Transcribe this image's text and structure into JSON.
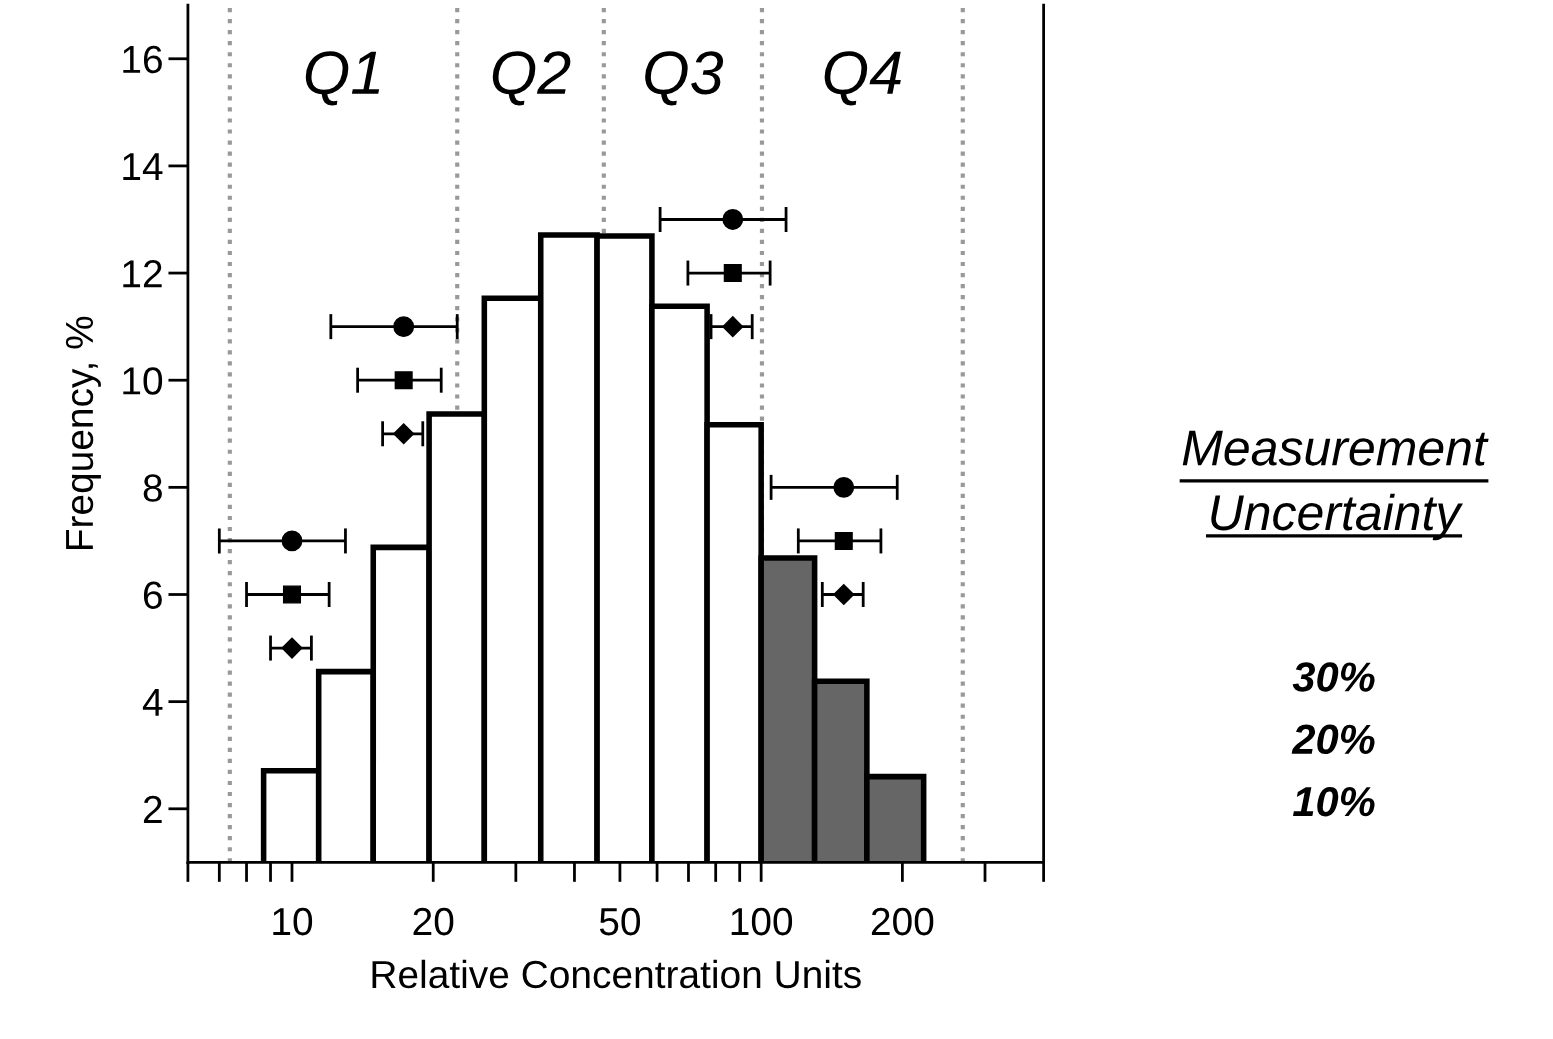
{
  "chart_data": {
    "type": "histogram",
    "xlabel": "Relative Concentration Units",
    "ylabel": "Frequency, %",
    "log": "x",
    "xlim": [
      6,
      400
    ],
    "ylim": [
      1,
      17
    ],
    "xticks": [
      10,
      20,
      50,
      100,
      200
    ],
    "yticks": [
      2,
      4,
      6,
      8,
      10,
      12,
      14,
      16
    ],
    "grid": false,
    "legend": false,
    "series": [
      {
        "bins": [
          8.7,
          11.4,
          14.9,
          19.6,
          25.7,
          33.9,
          44.7,
          58.5,
          76.7,
          100,
          130,
          168,
          222
        ],
        "values": [
          2.71,
          4.56,
          6.88,
          9.37,
          11.53,
          12.71,
          12.69,
          11.38,
          9.17,
          6.68,
          4.38,
          2.6
        ],
        "colors": [
          "#ffffff",
          "#ffffff",
          "#ffffff",
          "#ffffff",
          "#ffffff",
          "#ffffff",
          "#ffffff",
          "#ffffff",
          "#ffffff",
          "#666666",
          "#666666",
          "#666666"
        ]
      },
      {
        "type": "scatter",
        "marker": "circle",
        "color": "#000000",
        "x": [
          10,
          17.3,
          87,
          150
        ],
        "values": [
          7,
          11,
          13,
          8
        ],
        "xerrors": [
          [
            7,
            13
          ],
          [
            12.1,
            22.5
          ],
          [
            60.9,
            113
          ],
          [
            105,
            195
          ]
        ]
      },
      {
        "type": "scatter",
        "marker": "square",
        "color": "#000000",
        "x": [
          10,
          17.3,
          87,
          150
        ],
        "values": [
          6,
          10,
          12,
          7
        ],
        "xerrors": [
          [
            8,
            12
          ],
          [
            13.8,
            20.8
          ],
          [
            69.8,
            104.5
          ],
          [
            120,
            180
          ]
        ]
      },
      {
        "type": "scatter",
        "marker": "diamond",
        "color": "#000000",
        "x": [
          10,
          17.3,
          87,
          150
        ],
        "values": [
          5,
          9,
          11,
          6
        ],
        "xerrors": [
          [
            9,
            11
          ],
          [
            15.6,
            19
          ],
          [
            78.2,
            95.7
          ],
          [
            135,
            165
          ]
        ]
      }
    ],
    "ref_lines": [
      {
        "axis": "x",
        "value": 7.37,
        "color": "#999999",
        "line_style": "dotted"
      },
      {
        "axis": "x",
        "value": 22.5,
        "color": "#999999",
        "line_style": "dotted"
      },
      {
        "axis": "x",
        "value": 46.2,
        "color": "#999999",
        "line_style": "dotted"
      },
      {
        "axis": "x",
        "value": 100.4,
        "color": "#999999",
        "line_style": "dotted"
      },
      {
        "axis": "x",
        "value": 269,
        "color": "#999999",
        "line_style": "dotted"
      }
    ],
    "annotations": [
      "Q1",
      "Q2",
      "Q3",
      "Q4",
      "Measurement Uncertainty",
      "30%",
      "20%",
      "10%"
    ]
  }
}
